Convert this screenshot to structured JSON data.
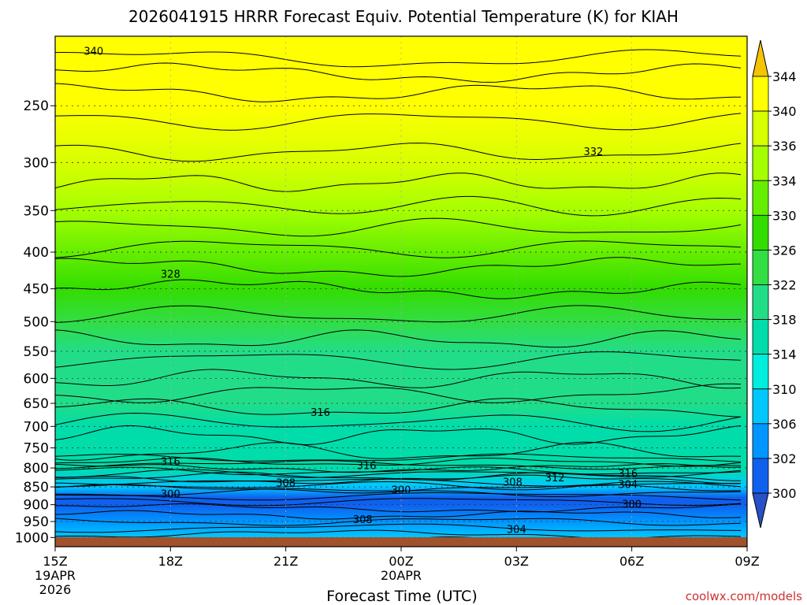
{
  "chart_data": {
    "type": "heatmap",
    "title": "2026041915 HRRR Forecast Equiv. Potential Temperature (K) for KIAH",
    "xlabel": "Forecast Time (UTC)",
    "ylabel": "",
    "credit": "coolwx.com/models",
    "x_ticks": [
      {
        "label": "15Z",
        "sub1": "19APR",
        "sub2": "2026",
        "hours": 0
      },
      {
        "label": "18Z",
        "sub1": "",
        "sub2": "",
        "hours": 3
      },
      {
        "label": "21Z",
        "sub1": "",
        "sub2": "",
        "hours": 6
      },
      {
        "label": "00Z",
        "sub1": "20APR",
        "sub2": "",
        "hours": 9
      },
      {
        "label": "03Z",
        "sub1": "",
        "sub2": "",
        "hours": 12
      },
      {
        "label": "06Z",
        "sub1": "",
        "sub2": "",
        "hours": 15
      },
      {
        "label": "09Z",
        "sub1": "",
        "sub2": "",
        "hours": 18
      }
    ],
    "xlim_hours": [
      0,
      18
    ],
    "y_scale": "log",
    "ylim_hPa": [
      1030,
      200
    ],
    "y_ticks": [
      250,
      300,
      350,
      400,
      450,
      500,
      550,
      600,
      650,
      700,
      750,
      800,
      850,
      900,
      950,
      1000
    ],
    "grid": true,
    "colorbar": {
      "labels": [
        344,
        340,
        336,
        334,
        330,
        326,
        322,
        318,
        314,
        310,
        306,
        302,
        300
      ],
      "colors": [
        "#f5c400",
        "#ffff00",
        "#d8ff00",
        "#a6ff00",
        "#66ee00",
        "#33dd00",
        "#33dd44",
        "#22dd88",
        "#00ddaa",
        "#00eedd",
        "#00c8ff",
        "#0096ff",
        "#1060ee",
        "#2850c8"
      ]
    },
    "ground_color": "#a0522d",
    "level_profile_hPa": [
      230,
      250,
      300,
      350,
      400,
      450,
      500,
      550,
      600,
      650,
      700,
      750,
      800,
      850,
      880,
      900,
      950,
      1000
    ],
    "theta_e_K": [
      342,
      340,
      336,
      334,
      331,
      327,
      323,
      321,
      320,
      318,
      317,
      317,
      314,
      307,
      300,
      301,
      305,
      309
    ],
    "contour_labels": [
      {
        "text": "340",
        "hours": 1.0,
        "hPa": 210
      },
      {
        "text": "332",
        "hours": 14.0,
        "hPa": 290
      },
      {
        "text": "328",
        "hours": 3.0,
        "hPa": 430
      },
      {
        "text": "316",
        "hours": 6.9,
        "hPa": 670
      },
      {
        "text": "316",
        "hours": 3.0,
        "hPa": 785
      },
      {
        "text": "316",
        "hours": 8.1,
        "hPa": 795
      },
      {
        "text": "316",
        "hours": 14.9,
        "hPa": 815
      },
      {
        "text": "308",
        "hours": 6.0,
        "hPa": 840
      },
      {
        "text": "308",
        "hours": 11.9,
        "hPa": 838
      },
      {
        "text": "312",
        "hours": 13.0,
        "hPa": 827
      },
      {
        "text": "304",
        "hours": 14.9,
        "hPa": 845
      },
      {
        "text": "300",
        "hours": 3.0,
        "hPa": 870
      },
      {
        "text": "300",
        "hours": 9.0,
        "hPa": 860
      },
      {
        "text": "300",
        "hours": 15.0,
        "hPa": 900
      },
      {
        "text": "308",
        "hours": 8.0,
        "hPa": 945
      },
      {
        "text": "304",
        "hours": 12.0,
        "hPa": 975
      }
    ]
  }
}
